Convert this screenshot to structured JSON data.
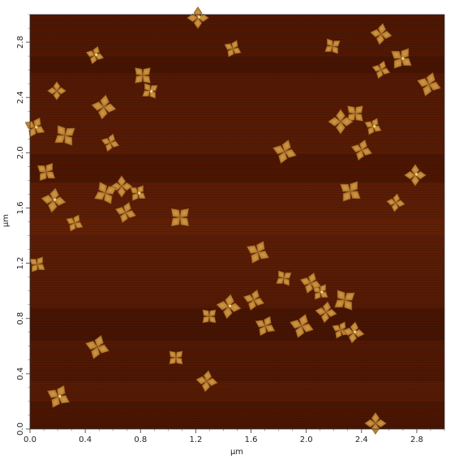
{
  "image": {
    "type": "AFM height image",
    "colormap": [
      "#3a0a00",
      "#5a1e06",
      "#8a4a1a",
      "#c4872e",
      "#e8c36a"
    ],
    "background_color": "#5a1c06",
    "object_color": "#c08a3a",
    "object_highlight": "#f2d58a"
  },
  "axes": {
    "x_label": "μm",
    "y_label": "μm",
    "x_ticks": [
      "0.0",
      "0.4",
      "0.8",
      "1.2",
      "1.6",
      "2.0",
      "2.4",
      "2.8"
    ],
    "y_ticks": [
      "0.0",
      "0.4",
      "0.8",
      "1.2",
      "1.6",
      "2.0",
      "2.4",
      "2.8"
    ],
    "range_um": [
      0,
      3.0
    ]
  }
}
